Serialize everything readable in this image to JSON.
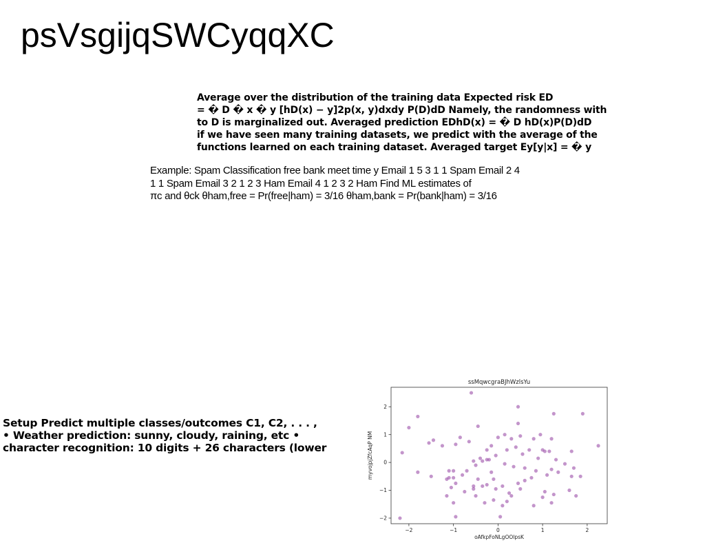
{
  "page": {
    "title": "psVsgijqSWCyqqXC"
  },
  "bold_block": {
    "lines": [
      "Average over the distribution of the training data Expected risk ED",
      "= � D � x � y [hD(x) − y]2p(x, y)dxdy P(D)dD Namely, the randomness with",
      "to D is marginalized out. Averaged prediction EDhD(x) = � D hD(x)P(D)dD",
      "if we have seen many training datasets, we predict with the average of the",
      "functions learned on each training dataset. Averaged target Ey[y|x] = � y"
    ]
  },
  "example": {
    "lines": [
      "Example: Spam Classification free bank meet time y Email 1 5 3 1 1 Spam Email 2 4",
      "1 1 Spam Email 3 2 1 2 3 Ham Email 4 1 2 3 2 Ham Find ML estimates of",
      "πc and θck θham,free = Pr(free|ham) = 3/16 θham,bank = Pr(bank|ham) = 3/16"
    ]
  },
  "setup": {
    "lines": [
      "Setup Predict multiple classes/outcomes C1, C2, . . . ,",
      "• Weather prediction: sunny, cloudy, raining, etc •",
      "character recognition: 10 digits + 26 characters (lower"
    ]
  },
  "chart_data": {
    "type": "scatter",
    "title": "ssMqwcgraBJhWzlsYu",
    "xlabel": "oAfkpFoNLgOOlpsK",
    "ylabel": "myvojpjZfcAqP NM",
    "xlim": [
      -2.4,
      2.45
    ],
    "ylim": [
      -2.2,
      2.7
    ],
    "xticks": [
      -2,
      -1,
      0,
      1,
      2
    ],
    "yticks": [
      -2,
      -1,
      0,
      1,
      2
    ],
    "grid": false,
    "point_color": "#9b4ea8",
    "x": [
      -2.2,
      -2.0,
      -1.8,
      -1.55,
      -1.45,
      -1.25,
      -1.15,
      -1.0,
      -0.95,
      -0.6,
      -0.45,
      0.45,
      0.95,
      1.25,
      1.9,
      0.45,
      -1.8,
      -2.15,
      -1.5,
      -1.1,
      -1.0,
      -0.55,
      -0.35,
      -0.25,
      -0.1,
      -0.05,
      0.1,
      0.3,
      0.45,
      0.6,
      0.75,
      0.85,
      1.05,
      1.1,
      1.2,
      1.35,
      1.6,
      1.75,
      2.25,
      -1.0,
      -0.8,
      -0.7,
      -0.5,
      -0.35,
      -0.2,
      -0.05,
      0.2,
      0.4,
      0.55,
      0.8,
      1.0,
      1.2,
      1.3,
      1.5,
      1.65,
      1.85,
      -0.95,
      -0.85,
      -0.65,
      -0.55,
      -0.4,
      -0.25,
      -0.15,
      0.0,
      0.15,
      0.3,
      0.5,
      0.7,
      0.9,
      1.05,
      1.25,
      -1.1,
      -0.95,
      -0.75,
      -0.5,
      -0.3,
      -0.1,
      0.1,
      0.25,
      0.5,
      0.8,
      1.0,
      1.2,
      1.65,
      1.7,
      -1.15,
      -1.05,
      -0.45,
      -0.15,
      0.15,
      0.35,
      0.6,
      1.15,
      -0.55,
      0.05,
      0.2,
      -0.25
    ],
    "y": [
      -2.0,
      1.25,
      1.65,
      0.7,
      0.8,
      0.6,
      -1.2,
      -1.45,
      -1.95,
      2.5,
      1.3,
      2.0,
      1.0,
      1.75,
      1.75,
      1.4,
      -0.35,
      0.35,
      -0.5,
      -0.55,
      -0.3,
      -0.95,
      -0.85,
      -0.8,
      -0.6,
      -0.95,
      -0.85,
      -1.2,
      -0.75,
      -0.65,
      -0.55,
      -0.3,
      -1.05,
      -0.45,
      -0.25,
      -0.35,
      -1.0,
      -1.2,
      0.6,
      -0.55,
      -0.45,
      -0.3,
      -0.1,
      0.05,
      0.1,
      0.25,
      0.45,
      0.55,
      0.3,
      0.85,
      0.45,
      0.85,
      0.1,
      -0.05,
      0.4,
      -0.5,
      0.65,
      0.9,
      0.75,
      0.05,
      0.15,
      0.45,
      0.6,
      0.9,
      1.0,
      0.85,
      0.95,
      0.45,
      0.15,
      0.4,
      -1.15,
      -0.3,
      -0.75,
      -1.05,
      -1.2,
      -1.45,
      -1.35,
      -1.55,
      -1.1,
      -0.95,
      -1.55,
      -1.25,
      -1.45,
      -0.5,
      -0.2,
      -0.6,
      -0.9,
      -0.6,
      -0.35,
      -0.05,
      -0.15,
      -0.2,
      0.4,
      -0.85,
      -1.95,
      -1.4,
      0.1
    ]
  }
}
